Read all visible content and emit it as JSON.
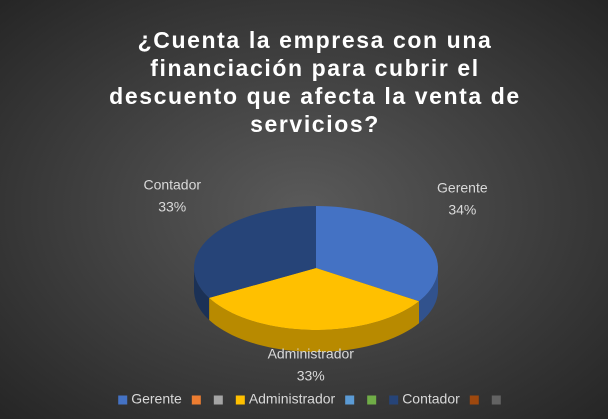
{
  "chart_data": {
    "type": "pie3d",
    "title": "¿Cuenta la empresa con una financiación para cubrir el descuento que afecta la venta de servicios?",
    "categories": [
      "Gerente",
      null,
      null,
      "Administrador",
      null,
      null,
      "Contador",
      null,
      null
    ],
    "values": [
      34,
      0,
      0,
      33,
      0,
      0,
      33,
      0,
      0
    ],
    "value_labels": [
      "34%",
      null,
      null,
      "33%",
      null,
      null,
      "33%",
      null,
      null
    ],
    "colors": [
      "#4472c4",
      "#ed7d31",
      "#a5a5a5",
      "#ffc000",
      "#5b9bd5",
      "#70ad47",
      "#264478",
      "#9e480e",
      "#636363"
    ],
    "legend": "bottom"
  }
}
